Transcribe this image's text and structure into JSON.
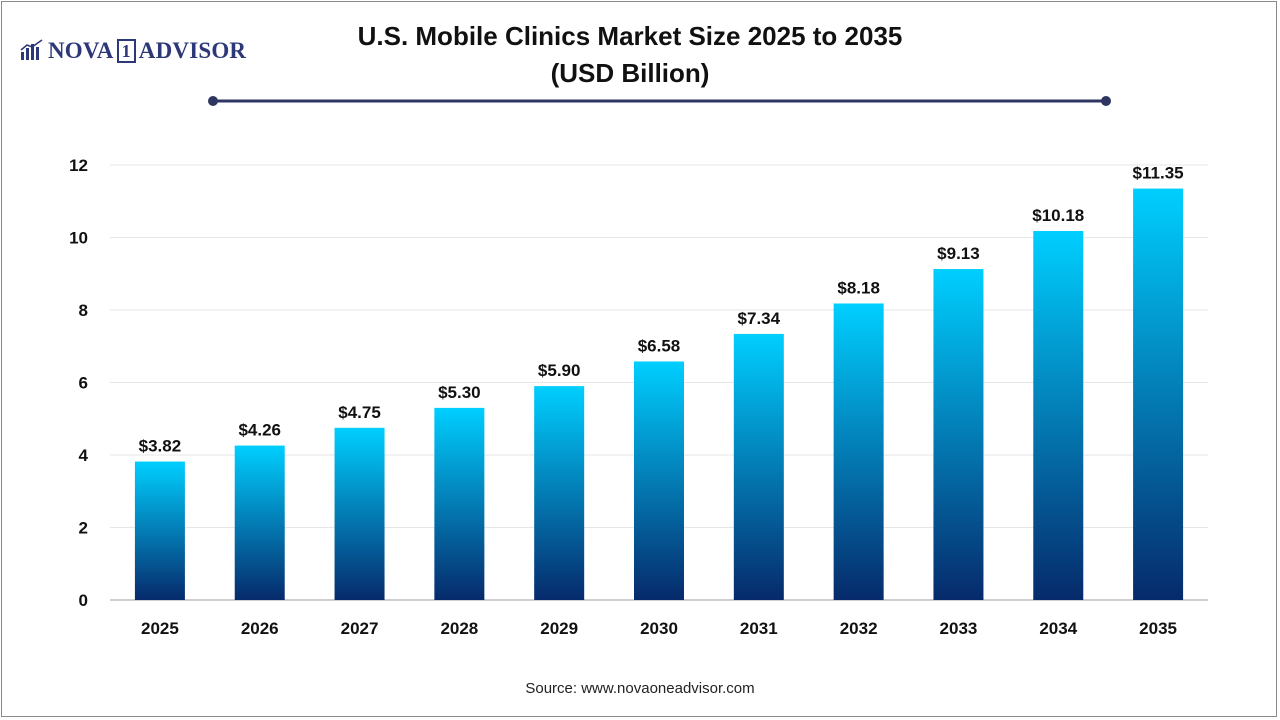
{
  "logo": {
    "part1": "NOVA",
    "badge": "1",
    "part2": "ADVISOR"
  },
  "title_line1": "U.S. Mobile Clinics Market Size 2025 to 2035",
  "title_line2": "(USD Billion)",
  "source": "Source: www.novaoneadvisor.com",
  "colors": {
    "bar_top": "#00cfff",
    "bar_bottom": "#062a6b",
    "rule": "#2d3560"
  },
  "chart_data": {
    "type": "bar",
    "categories": [
      "2025",
      "2026",
      "2027",
      "2028",
      "2029",
      "2030",
      "2031",
      "2032",
      "2033",
      "2034",
      "2035"
    ],
    "values": [
      3.82,
      4.26,
      4.75,
      5.3,
      5.9,
      6.58,
      7.34,
      8.18,
      9.13,
      10.18,
      11.35
    ],
    "data_labels": [
      "$3.82",
      "$4.26",
      "$4.75",
      "$5.30",
      "$5.90",
      "$6.58",
      "$7.34",
      "$8.18",
      "$9.13",
      "$10.18",
      "$11.35"
    ],
    "yticks": [
      0,
      2,
      4,
      6,
      8,
      10,
      12
    ],
    "ylim": [
      0,
      12
    ],
    "grid": true,
    "legend": "none"
  }
}
